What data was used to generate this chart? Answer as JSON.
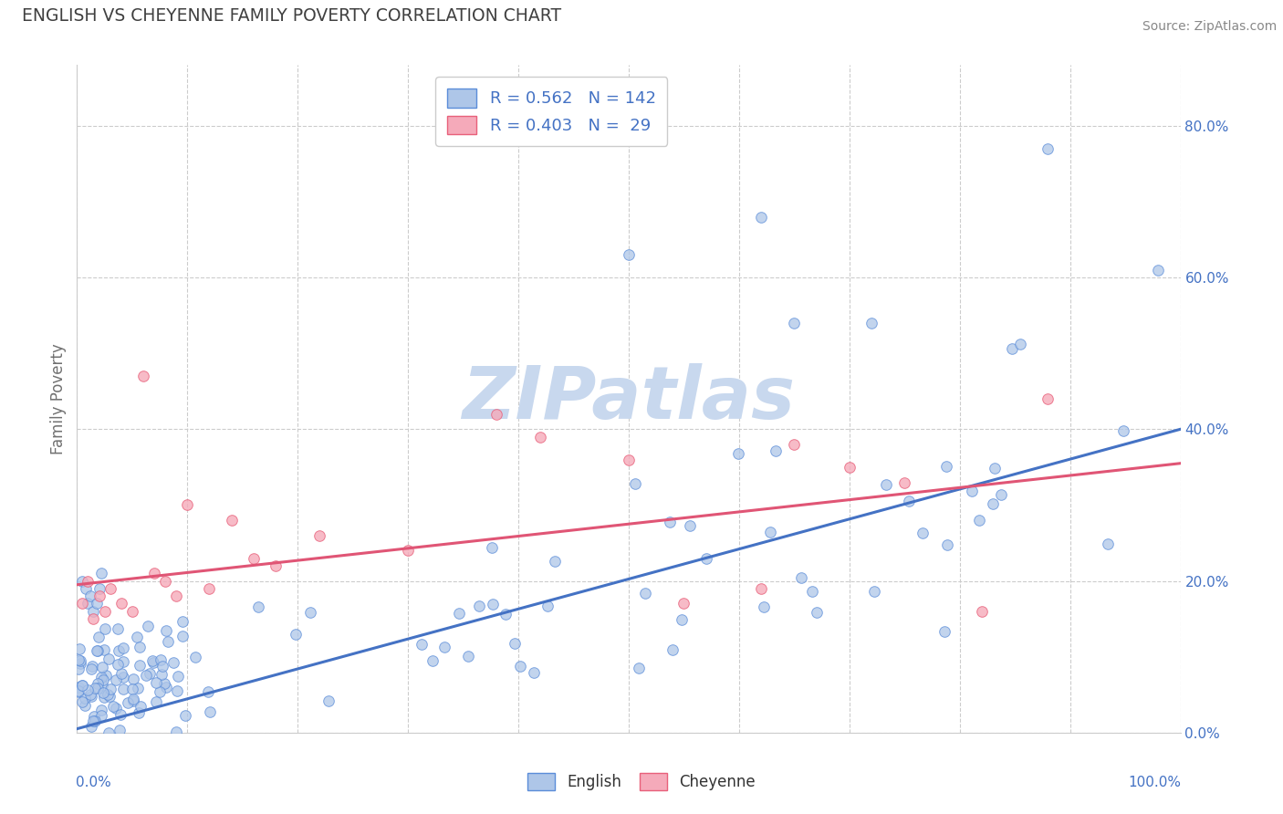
{
  "title": "ENGLISH VS CHEYENNE FAMILY POVERTY CORRELATION CHART",
  "source": "Source: ZipAtlas.com",
  "ylabel": "Family Poverty",
  "ytick_labels": [
    "0.0%",
    "20.0%",
    "40.0%",
    "60.0%",
    "80.0%"
  ],
  "ytick_vals": [
    0.0,
    0.2,
    0.4,
    0.6,
    0.8
  ],
  "xlim": [
    0.0,
    1.0
  ],
  "ylim": [
    0.0,
    0.88
  ],
  "english_color": "#aec6e8",
  "cheyenne_color": "#f5aaba",
  "english_edge_color": "#5b8dd9",
  "cheyenne_edge_color": "#e8607a",
  "english_line_color": "#4472c4",
  "cheyenne_line_color": "#e05575",
  "english_R": 0.562,
  "english_N": 142,
  "cheyenne_R": 0.403,
  "cheyenne_N": 29,
  "title_color": "#404040",
  "source_color": "#888888",
  "watermark_color": "#c8d8ee",
  "tick_label_color": "#4472c4",
  "ylabel_color": "#707070",
  "eng_line_start_y": 0.0,
  "eng_line_end_y": 0.4,
  "chey_line_start_y": 0.195,
  "chey_line_end_y": 0.355
}
